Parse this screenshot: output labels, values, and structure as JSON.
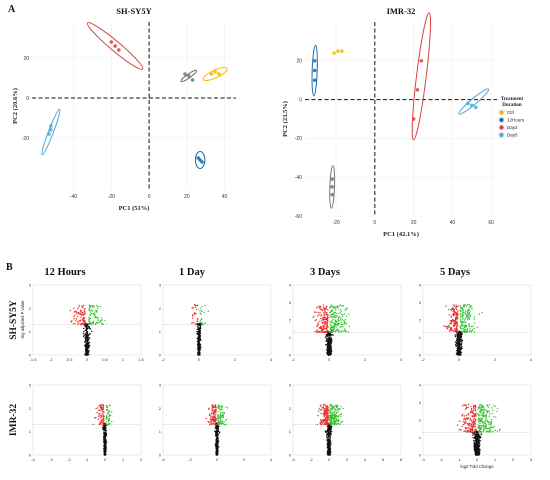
{
  "figure": {
    "panel_a": "A",
    "panel_b": "B"
  },
  "chart_data": [
    {
      "type": "scatter",
      "title": "SH-SY5Y",
      "xlabel": "PC1 (51%)",
      "ylabel": "PC2 (20.6%)",
      "xlim": [
        -62,
        46
      ],
      "ylim": [
        -46,
        38
      ],
      "x_ticks": [
        -40,
        -20,
        0,
        20,
        40
      ],
      "y_ticks": [
        -20,
        0,
        20
      ],
      "reference_lines": {
        "x": 0,
        "y": 0
      },
      "groups": [
        {
          "name": "Ctrl",
          "color": "#f5b800",
          "points": [
            [
              33,
              12
            ],
            [
              35,
              13
            ],
            [
              37,
              12
            ]
          ],
          "ellipse": {
            "cx": 35,
            "cy": 12,
            "rx": 7,
            "ry": 2,
            "angle_deg": 25
          }
        },
        {
          "name": "12Hours",
          "color": "#1a6fa8",
          "points": [
            [
              26,
              -30
            ],
            [
              27,
              -31
            ],
            [
              28,
              -32
            ]
          ],
          "ellipse": {
            "cx": 27,
            "cy": -31,
            "rx": 2.5,
            "ry": 4.5,
            "angle_deg": 0
          }
        },
        {
          "name": "Day3",
          "color": "#d9433f",
          "points": [
            [
              -18,
              26
            ],
            [
              -20,
              28
            ],
            [
              -16,
              24
            ]
          ],
          "ellipse": {
            "cx": -18,
            "cy": 26,
            "rx": 19,
            "ry": 2.6,
            "angle_deg": -40
          }
        },
        {
          "name": "Day5",
          "color": "#4ca3dd",
          "points": [
            [
              -52,
              -14
            ],
            [
              -52,
              -16
            ],
            [
              -53,
              -18
            ]
          ],
          "ellipse": {
            "cx": -52,
            "cy": -17,
            "rx": 13,
            "ry": 1.3,
            "angle_deg": 69
          }
        },
        {
          "name": "Ctrl (grey)",
          "color": "#777777",
          "points": [
            [
              19,
              12
            ],
            [
              21,
              11
            ],
            [
              23,
              9
            ]
          ],
          "ellipse": {
            "cx": 21,
            "cy": 11,
            "rx": 5,
            "ry": 1,
            "angle_deg": 35
          }
        }
      ]
    },
    {
      "type": "scatter",
      "title": "IMR-32",
      "xlabel": "PC1 (42.1%)",
      "ylabel": "PC2 (23.5%)",
      "xlim": [
        -36,
        63
      ],
      "ylim": [
        -60,
        40
      ],
      "x_ticks": [
        -20,
        0,
        20,
        40,
        60
      ],
      "y_ticks": [
        -60,
        -40,
        -20,
        0,
        20
      ],
      "reference_lines": {
        "x": 0,
        "y": 0
      },
      "legend": {
        "title": "Treatment Duration",
        "position": "right",
        "entries": [
          "Ctrl",
          "12Hours",
          "Day3",
          "Day5"
        ]
      },
      "groups": [
        {
          "name": "Ctrl",
          "color": "#f5b800",
          "points": [
            [
              -21,
              24
            ],
            [
              -19,
              25
            ],
            [
              -17,
              25
            ]
          ],
          "ellipse": null
        },
        {
          "name": "12Hours",
          "color": "#1a6fa8",
          "points": [
            [
              -31,
              10
            ],
            [
              -31,
              15
            ],
            [
              -31,
              20
            ]
          ],
          "ellipse": {
            "cx": -31,
            "cy": 15,
            "rx": 13,
            "ry": 1.3,
            "angle_deg": 88
          }
        },
        {
          "name": "Day3",
          "color": "#d9433f",
          "points": [
            [
              20,
              -10
            ],
            [
              22,
              5
            ],
            [
              24,
              20
            ]
          ],
          "ellipse": {
            "cx": 24,
            "cy": 12,
            "rx": 33,
            "ry": 2.5,
            "angle_deg": 83
          }
        },
        {
          "name": "Day5",
          "color": "#4ca3dd",
          "points": [
            [
              48,
              -2
            ],
            [
              50,
              -3
            ],
            [
              52,
              -4
            ]
          ],
          "ellipse": {
            "cx": 51,
            "cy": -1,
            "rx": 10,
            "ry": 1.5,
            "angle_deg": 40
          }
        },
        {
          "name": "Ctrl (grey)",
          "color": "#777777",
          "points": [
            [
              -22,
              -41
            ],
            [
              -22,
              -45
            ],
            [
              -22,
              -49
            ]
          ],
          "ellipse": {
            "cx": -22,
            "cy": -45,
            "rx": 11,
            "ry": 1.2,
            "angle_deg": 88
          }
        }
      ]
    }
  ],
  "volcano": {
    "columns": [
      "12 Hours",
      "1 Day",
      "3 Days",
      "5 Days"
    ],
    "rows": [
      "SH-SY5Y",
      "IMR-32"
    ],
    "ylabel_sample": "-log adjusted P value",
    "xlabel_sample": "log2 Fold Change",
    "colors": {
      "down": "#e4322b",
      "up": "#35c235",
      "ns": "#111111"
    },
    "panels": [
      {
        "row": 0,
        "col": 0,
        "xlim": [
          -1.5,
          1.5
        ],
        "x_ticks": [
          -1.5,
          -1.0,
          -0.5,
          0.0,
          0.5,
          1.0,
          1.5
        ],
        "ylim": [
          0,
          3
        ],
        "y_ticks": [
          0,
          1,
          2,
          3
        ],
        "spread_down": 0.35,
        "spread_up": 0.4,
        "n_black": 260,
        "n_red": 80,
        "n_green": 75
      },
      {
        "row": 0,
        "col": 1,
        "xlim": [
          -2,
          4
        ],
        "x_ticks": [
          -2,
          0,
          2,
          4
        ],
        "ylim": [
          0,
          3
        ],
        "y_ticks": [
          0,
          1,
          2,
          3
        ],
        "spread_down": 0.4,
        "spread_up": 0.5,
        "n_black": 240,
        "n_red": 25,
        "n_green": 20
      },
      {
        "row": 0,
        "col": 2,
        "xlim": [
          -2,
          4
        ],
        "x_ticks": [
          -2,
          0,
          2,
          4
        ],
        "ylim": [
          0,
          4
        ],
        "y_ticks": [
          0,
          1,
          2,
          3,
          4
        ],
        "spread_down": 0.7,
        "spread_up": 0.9,
        "n_black": 330,
        "n_red": 150,
        "n_green": 170
      },
      {
        "row": 0,
        "col": 3,
        "xlim": [
          -2,
          4
        ],
        "x_ticks": [
          -2,
          0,
          2,
          4
        ],
        "ylim": [
          0,
          4
        ],
        "y_ticks": [
          0,
          1,
          2,
          3,
          4
        ],
        "spread_down": 0.6,
        "spread_up": 0.9,
        "n_black": 330,
        "n_red": 140,
        "n_green": 150
      },
      {
        "row": 1,
        "col": 0,
        "xlim": [
          -4,
          2
        ],
        "x_ticks": [
          -4,
          -3,
          -2,
          -1,
          0,
          1,
          2
        ],
        "ylim": [
          0,
          3
        ],
        "y_ticks": [
          0,
          1,
          2,
          3
        ],
        "spread_down": 0.5,
        "spread_up": 0.3,
        "n_black": 280,
        "n_red": 70,
        "n_green": 45
      },
      {
        "row": 1,
        "col": 1,
        "xlim": [
          -4,
          4
        ],
        "x_ticks": [
          -4,
          -2,
          0,
          2,
          4
        ],
        "ylim": [
          0,
          3
        ],
        "y_ticks": [
          0,
          1,
          2,
          3
        ],
        "spread_down": 0.6,
        "spread_up": 0.6,
        "n_black": 280,
        "n_red": 90,
        "n_green": 80
      },
      {
        "row": 1,
        "col": 2,
        "xlim": [
          -4,
          8
        ],
        "x_ticks": [
          -4,
          -2,
          0,
          2,
          4,
          6,
          8
        ],
        "ylim": [
          0,
          3
        ],
        "y_ticks": [
          0,
          1,
          2,
          3
        ],
        "spread_down": 1.0,
        "spread_up": 1.3,
        "n_black": 340,
        "n_red": 150,
        "n_green": 170
      },
      {
        "row": 1,
        "col": 3,
        "xlim": [
          -3,
          3
        ],
        "x_ticks": [
          -3,
          -2,
          -1,
          0,
          1,
          2,
          3
        ],
        "ylim": [
          0,
          4
        ],
        "y_ticks": [
          0,
          1,
          2,
          3,
          4
        ],
        "spread_down": 0.8,
        "spread_up": 1.0,
        "n_black": 340,
        "n_red": 160,
        "n_green": 190
      }
    ]
  }
}
